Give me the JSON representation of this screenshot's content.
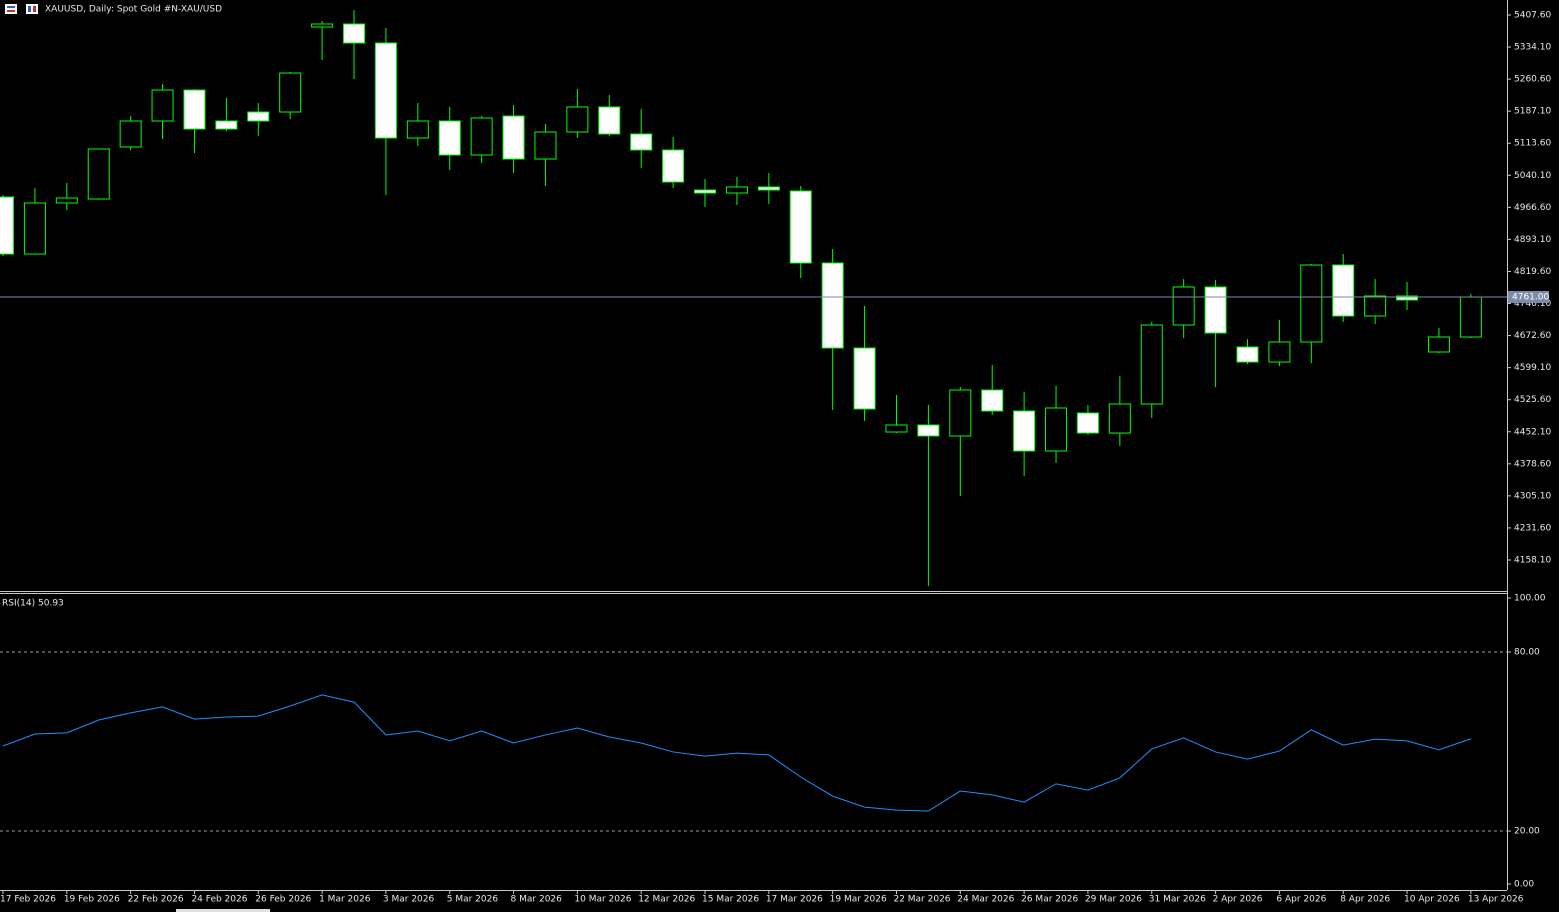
{
  "chart_data": [
    {
      "type": "candlestick",
      "title": "XAUUSD, Daily:  Spot Gold #N-XAU/USD",
      "categories": [
        "17 Feb 2026",
        null,
        "19 Feb 2026",
        null,
        "22 Feb 2026",
        null,
        "24 Feb 2026",
        null,
        "26 Feb 2026",
        null,
        "1 Mar 2026",
        null,
        "3 Mar 2026",
        null,
        "5 Mar 2026",
        null,
        "8 Mar 2026",
        null,
        "10 Mar 2026",
        null,
        "12 Mar 2026",
        null,
        "15 Mar 2026",
        null,
        "17 Mar 2026",
        null,
        "19 Mar 2026",
        null,
        "22 Mar 2026",
        null,
        "24 Mar 2026",
        null,
        "26 Mar 2026",
        null,
        "29 Mar 2026",
        null,
        "31 Mar 2026",
        null,
        "2 Apr 2026",
        null,
        "6 Apr 2026",
        null,
        "8 Apr 2026",
        null,
        "10 Apr 2026",
        null,
        "13 Apr 2026"
      ],
      "open": [
        4990.3,
        4859.6,
        4976.6,
        4985.7,
        5105.0,
        5164.6,
        5235.6,
        5164.6,
        5185.2,
        5185.2,
        5380.1,
        5387.0,
        5343.4,
        5125.6,
        5164.6,
        5086.6,
        5176.0,
        5077.4,
        5139.4,
        5196.7,
        5134.8,
        5098.1,
        5006.4,
        4999.5,
        5013.3,
        5004.1,
        4839.0,
        4644.1,
        4451.5,
        4467.6,
        4442.4,
        4547.8,
        4499.7,
        4408.0,
        4495.1,
        4449.2,
        4515.7,
        4696.9,
        4784.0,
        4646.4,
        4612.0,
        4657.9,
        4834.4,
        4717.5,
        4763.4,
        4635.0,
        4669.4
      ],
      "high": [
        4995.0,
        5011.0,
        5022.4,
        5102.0,
        5176.0,
        5249.4,
        5237.9,
        5217.3,
        5205.8,
        5276.9,
        5393.8,
        5419.1,
        5377.8,
        5205.8,
        5196.7,
        5176.0,
        5201.3,
        5157.7,
        5237.9,
        5224.2,
        5192.1,
        5127.9,
        5031.6,
        5036.5,
        5045.4,
        5015.6,
        4871.1,
        4740.4,
        4536.4,
        4513.4,
        4554.7,
        4605.1,
        4543.2,
        4557.0,
        4513.4,
        4580.0,
        4703.7,
        4802.3,
        4800.0,
        4664.7,
        4708.3,
        4836.7,
        4859.6,
        4802.3,
        4795.4,
        4690.0,
        4767.9
      ],
      "low": [
        4855.0,
        4858.0,
        4960.5,
        4984.0,
        5098.1,
        5123.3,
        5091.2,
        5141.6,
        5130.2,
        5169.2,
        5304.4,
        5260.9,
        4994.9,
        5107.3,
        5052.2,
        5068.3,
        5045.4,
        5015.6,
        5125.6,
        5130.2,
        5056.8,
        5011.0,
        4967.4,
        4972.0,
        4974.3,
        4804.6,
        4502.0,
        4476.8,
        4449.2,
        4098.5,
        4304.8,
        4490.5,
        4350.7,
        4380.5,
        4444.7,
        4419.4,
        4483.7,
        4667.0,
        4554.7,
        4607.4,
        4602.9,
        4609.7,
        4703.7,
        4699.2,
        4731.3,
        4632.7,
        4667.0
      ],
      "close": [
        4859.6,
        4976.6,
        4988.0,
        5100.4,
        5164.6,
        5235.6,
        5146.2,
        5146.2,
        5164.6,
        5274.6,
        5387.0,
        5343.4,
        5125.6,
        5164.6,
        5086.6,
        5171.5,
        5077.4,
        5139.4,
        5196.7,
        5134.8,
        5098.1,
        5024.7,
        4999.5,
        5013.3,
        5006.4,
        4839.0,
        4644.1,
        4504.3,
        4467.6,
        4442.4,
        4547.8,
        4499.7,
        4408.0,
        4506.6,
        4449.2,
        4515.7,
        4696.9,
        4784.0,
        4678.5,
        4612.0,
        4657.9,
        4834.4,
        4717.5,
        4763.4,
        4754.2,
        4669.4,
        4761.0
      ],
      "ylim": [
        4087.0,
        5442.0
      ],
      "yticks": [
        {
          "value": 5407.6,
          "label": "5407.60"
        },
        {
          "value": 5334.1,
          "label": "5334.10"
        },
        {
          "value": 5260.6,
          "label": "5260.60"
        },
        {
          "value": 5187.1,
          "label": "5187.10"
        },
        {
          "value": 5113.6,
          "label": "5113.60"
        },
        {
          "value": 5040.1,
          "label": "5040.10"
        },
        {
          "value": 4966.6,
          "label": "4966.60"
        },
        {
          "value": 4893.1,
          "label": "4893.10"
        },
        {
          "value": 4819.6,
          "label": "4819.60"
        },
        {
          "value": 4746.1,
          "label": "4746.10"
        },
        {
          "value": 4672.6,
          "label": "4672.60"
        },
        {
          "value": 4599.1,
          "label": "4599.10"
        },
        {
          "value": 4525.6,
          "label": "4525.60"
        },
        {
          "value": 4452.1,
          "label": "4452.10"
        },
        {
          "value": 4378.6,
          "label": "4378.60"
        },
        {
          "value": 4305.1,
          "label": "4305.10"
        },
        {
          "value": 4231.6,
          "label": "4231.60"
        },
        {
          "value": 4158.1,
          "label": "4158.10"
        }
      ],
      "current_price": {
        "value": 4761.0,
        "label": "4761.00"
      },
      "up_color": "#000000",
      "down_color": "#ffffff",
      "outline_color": "#00ff00",
      "price_line_color": "#7b8aa8",
      "grid": false
    },
    {
      "type": "line",
      "name": "RSI(14)",
      "values": [
        48.5,
        52.5,
        52.9,
        57.2,
        59.6,
        61.6,
        57.5,
        58.2,
        58.5,
        61.9,
        65.6,
        63.2,
        52.2,
        53.5,
        50.2,
        53.5,
        49.5,
        52.2,
        54.5,
        51.5,
        49.5,
        46.5,
        45.1,
        46.1,
        45.5,
        38.1,
        31.7,
        28.0,
        27.0,
        26.7,
        33.4,
        32.1,
        29.7,
        35.8,
        33.7,
        37.8,
        47.5,
        51.2,
        46.5,
        44.1,
        46.8,
        53.9,
        48.8,
        50.8,
        50.2,
        47.2,
        50.93
      ],
      "color": "#1e90ff",
      "ylim": [
        0,
        100
      ],
      "yticks": [
        {
          "value": 100,
          "label": "100.00"
        },
        {
          "value": 80,
          "label": "80.00"
        },
        {
          "value": 20,
          "label": "20.00"
        },
        {
          "value": 0,
          "label": "0.00"
        }
      ],
      "level_lines": true
    }
  ]
}
